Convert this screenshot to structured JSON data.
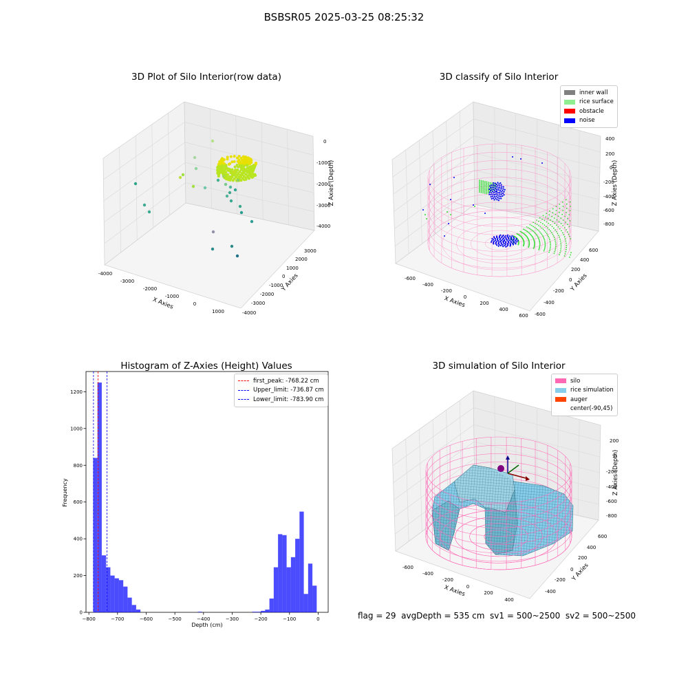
{
  "suptitle": "BSBSR05 2025-03-25 08:25:32",
  "footer": "flag = 29  avgDepth = 535 cm  sv1 = 500~2500  sv2 = 500~2500",
  "panels": {
    "raw": {
      "title": "3D Plot of Silo Interior(row data)",
      "xlabel": "X Axies",
      "ylabel": "Y Axies",
      "zlabel": "Z Axies (Depth)",
      "x_ticks": [
        "-4000",
        "-3000",
        "-2000",
        "-1000",
        "0",
        "1000"
      ],
      "y_ticks": [
        "-4000",
        "-3000",
        "-2000",
        "-1000",
        "0",
        "1000",
        "2000",
        "3000"
      ],
      "z_ticks": [
        "0",
        "-1000",
        "-2000",
        "-3000",
        "-4000"
      ]
    },
    "classify": {
      "title": "3D classify of Silo Interior",
      "xlabel": "X Axies",
      "ylabel": "Y Axies",
      "zlabel": "Z Axies (Depth)",
      "x_ticks": [
        "-600",
        "-400",
        "-200",
        "0",
        "200",
        "400",
        "600"
      ],
      "y_ticks": [
        "-600",
        "-400",
        "-200",
        "0",
        "200",
        "400",
        "600"
      ],
      "z_ticks": [
        "400",
        "200",
        "0",
        "-200",
        "-400",
        "-600",
        "-800"
      ],
      "legend": [
        {
          "label": "inner wall",
          "color": "#808080"
        },
        {
          "label": "rice surface",
          "color": "#90ee90"
        },
        {
          "label": "obstacle",
          "color": "#ff0000"
        },
        {
          "label": "noise",
          "color": "#0000ff"
        }
      ]
    },
    "simulation": {
      "title": "3D simulation of Silo Interior",
      "xlabel": "X Axies",
      "ylabel": "Y Axies",
      "zlabel": "Z Axies (Depth)",
      "x_ticks": [
        "-600",
        "-400",
        "-200",
        "0",
        "200",
        "400"
      ],
      "y_ticks": [
        "-400",
        "-200",
        "0",
        "200",
        "400",
        "600"
      ],
      "z_ticks": [
        "200",
        "0",
        "-200",
        "-400",
        "-600",
        "-800"
      ],
      "legend": [
        {
          "label": "silo",
          "color": "#ff69b4"
        },
        {
          "label": "rice simulation",
          "color": "#87ceeb"
        },
        {
          "label": "auger",
          "color": "#ff4500"
        },
        {
          "label": "center(-90,45)",
          "color": "#ffffff"
        }
      ]
    }
  },
  "chart_data": {
    "type": "bar",
    "title": "Histogram of Z-Axies (Height) Values",
    "xlabel": "Depth (cm)",
    "ylabel": "Frequency",
    "xlim": [
      -810,
      35
    ],
    "ylim": [
      0,
      1310
    ],
    "x_ticks": [
      -800,
      -700,
      -600,
      -500,
      -400,
      -300,
      -200,
      -100,
      0
    ],
    "y_ticks": [
      0,
      200,
      400,
      600,
      800,
      1000,
      1200
    ],
    "bar_color": "#0000ff",
    "bins": [
      {
        "x0": -785,
        "x1": -770,
        "count": 840
      },
      {
        "x0": -770,
        "x1": -755,
        "count": 1250
      },
      {
        "x0": -755,
        "x1": -740,
        "count": 310
      },
      {
        "x0": -740,
        "x1": -725,
        "count": 245
      },
      {
        "x0": -725,
        "x1": -710,
        "count": 200
      },
      {
        "x0": -710,
        "x1": -695,
        "count": 185
      },
      {
        "x0": -695,
        "x1": -680,
        "count": 175
      },
      {
        "x0": -680,
        "x1": -665,
        "count": 140
      },
      {
        "x0": -665,
        "x1": -650,
        "count": 80
      },
      {
        "x0": -650,
        "x1": -635,
        "count": 40
      },
      {
        "x0": -635,
        "x1": -620,
        "count": 15
      },
      {
        "x0": -420,
        "x1": -405,
        "count": 3
      },
      {
        "x0": -230,
        "x1": -215,
        "count": 3
      },
      {
        "x0": -215,
        "x1": -200,
        "count": 3
      },
      {
        "x0": -200,
        "x1": -185,
        "count": 8
      },
      {
        "x0": -185,
        "x1": -170,
        "count": 15
      },
      {
        "x0": -170,
        "x1": -155,
        "count": 75
      },
      {
        "x0": -155,
        "x1": -140,
        "count": 245
      },
      {
        "x0": -140,
        "x1": -125,
        "count": 425
      },
      {
        "x0": -125,
        "x1": -110,
        "count": 420
      },
      {
        "x0": -110,
        "x1": -95,
        "count": 245
      },
      {
        "x0": -95,
        "x1": -80,
        "count": 300
      },
      {
        "x0": -80,
        "x1": -65,
        "count": 400
      },
      {
        "x0": -65,
        "x1": -50,
        "count": 548
      },
      {
        "x0": -50,
        "x1": -35,
        "count": 100
      },
      {
        "x0": -35,
        "x1": -20,
        "count": 265
      },
      {
        "x0": -20,
        "x1": -5,
        "count": 145
      }
    ],
    "reference_lines": [
      {
        "label": "first_peak: -768.22 cm",
        "x": -768.22,
        "color": "#ff0000"
      },
      {
        "label": "Upper_limit: -736.87 cm",
        "x": -736.87,
        "color": "#0000ff"
      },
      {
        "label": "Lower_limit: -783.90 cm",
        "x": -783.9,
        "color": "#0000ff"
      }
    ],
    "legend_position": "top-right"
  }
}
